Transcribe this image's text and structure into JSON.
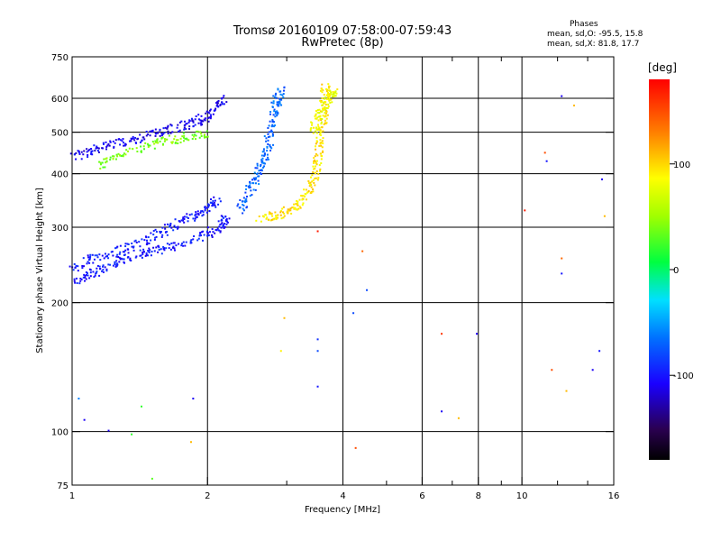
{
  "header": {
    "title": "Tromsø 20160109 07:58:00-07:59:43",
    "subtitle": "RwPretec (8p)"
  },
  "phases_box": {
    "heading": "Phases",
    "line_o": "mean, sd,O: -95.5, 15.8",
    "line_x": "mean, sd,X:  81.8, 17.7"
  },
  "colorbar": {
    "label": "[deg]",
    "ticks": [
      100,
      0,
      -100
    ],
    "tick_labels": [
      "100",
      "0",
      "-100"
    ],
    "range": [
      -180,
      180
    ]
  },
  "colors": {
    "frame": "#000000",
    "grid": "#000000",
    "background": "#ffffff"
  },
  "chart_data": {
    "type": "scatter",
    "title": "Tromsø 20160109 07:58:00-07:59:43",
    "subtitle": "RwPretec (8p)",
    "xlabel": "Frequency [MHz]",
    "ylabel": "Stationary phase Virtual Height [km]",
    "xscale": "log",
    "yscale": "log",
    "xlim": [
      1,
      16
    ],
    "ylim": [
      75,
      750
    ],
    "xticks": [
      1,
      2,
      4,
      6,
      8,
      10,
      16
    ],
    "xtick_labels": [
      "1",
      "2",
      "4",
      "6",
      "8",
      "10",
      "16"
    ],
    "yticks": [
      75,
      100,
      200,
      300,
      400,
      500,
      600,
      750
    ],
    "ytick_labels": [
      "75",
      "100",
      "200",
      "300",
      "400",
      "500",
      "600",
      "750"
    ],
    "x_gridlines": [
      2,
      4,
      6,
      8,
      10
    ],
    "y_gridlines": [
      100,
      200,
      300,
      400,
      500,
      600
    ],
    "color_dimension": "phase [deg]",
    "color_range": [
      -180,
      180
    ],
    "traces": [
      {
        "description": "O-mode lower F trace",
        "phase": -100,
        "points": [
          [
            1.0,
            225
          ],
          [
            1.1,
            235
          ],
          [
            1.2,
            245
          ],
          [
            1.3,
            255
          ],
          [
            1.45,
            262
          ],
          [
            1.6,
            268
          ],
          [
            1.8,
            280
          ],
          [
            2.0,
            292
          ],
          [
            2.15,
            305
          ],
          [
            2.2,
            320
          ]
        ]
      },
      {
        "description": "O-mode upper lower trace",
        "phase": -98,
        "points": [
          [
            1.0,
            240
          ],
          [
            1.1,
            255
          ],
          [
            1.25,
            265
          ],
          [
            1.4,
            275
          ],
          [
            1.55,
            292
          ],
          [
            1.7,
            305
          ],
          [
            1.85,
            320
          ],
          [
            2.0,
            335
          ],
          [
            2.1,
            350
          ]
        ]
      },
      {
        "description": "O-mode F2 cusp",
        "phase": -70,
        "points": [
          [
            2.35,
            330
          ],
          [
            2.45,
            360
          ],
          [
            2.55,
            390
          ],
          [
            2.62,
            420
          ],
          [
            2.7,
            460
          ],
          [
            2.75,
            500
          ],
          [
            2.8,
            550
          ],
          [
            2.85,
            600
          ],
          [
            2.9,
            640
          ]
        ]
      },
      {
        "description": "X-mode F2 trace",
        "phase": 95,
        "points": [
          [
            2.6,
            315
          ],
          [
            2.8,
            320
          ],
          [
            3.0,
            330
          ],
          [
            3.2,
            345
          ],
          [
            3.35,
            370
          ],
          [
            3.45,
            400
          ],
          [
            3.5,
            440
          ],
          [
            3.55,
            490
          ],
          [
            3.6,
            540
          ],
          [
            3.62,
            600
          ],
          [
            3.65,
            650
          ]
        ]
      },
      {
        "description": "X-mode upper spread",
        "phase": 80,
        "points": [
          [
            3.4,
            500
          ],
          [
            3.5,
            540
          ],
          [
            3.6,
            580
          ],
          [
            3.75,
            610
          ],
          [
            3.8,
            625
          ]
        ]
      },
      {
        "description": "O-mode high spread cluster",
        "phase": -110,
        "points": [
          [
            1.0,
            440
          ],
          [
            1.1,
            455
          ],
          [
            1.2,
            470
          ],
          [
            1.35,
            480
          ],
          [
            1.5,
            495
          ],
          [
            1.65,
            510
          ],
          [
            1.8,
            525
          ],
          [
            1.95,
            540
          ],
          [
            2.05,
            560
          ],
          [
            2.15,
            600
          ]
        ]
      },
      {
        "description": "Mixed-phase spread cluster",
        "phase": 40,
        "points": [
          [
            1.15,
            420
          ],
          [
            1.25,
            440
          ],
          [
            1.45,
            465
          ],
          [
            1.6,
            480
          ],
          [
            1.8,
            490
          ],
          [
            2.0,
            500
          ]
        ]
      }
    ],
    "scattered_points": [
      {
        "x": 1.03,
        "y": 120,
        "phase": -60
      },
      {
        "x": 1.06,
        "y": 107,
        "phase": -110
      },
      {
        "x": 1.2,
        "y": 101,
        "phase": -110
      },
      {
        "x": 1.35,
        "y": 99,
        "phase": 20
      },
      {
        "x": 1.5,
        "y": 78,
        "phase": 30
      },
      {
        "x": 1.42,
        "y": 115,
        "phase": 20
      },
      {
        "x": 1.85,
        "y": 120,
        "phase": -110
      },
      {
        "x": 1.83,
        "y": 95,
        "phase": 110
      },
      {
        "x": 2.9,
        "y": 155,
        "phase": 90
      },
      {
        "x": 2.95,
        "y": 185,
        "phase": 110
      },
      {
        "x": 3.5,
        "y": 165,
        "phase": -90
      },
      {
        "x": 3.5,
        "y": 155,
        "phase": -80
      },
      {
        "x": 3.5,
        "y": 128,
        "phase": -100
      },
      {
        "x": 3.5,
        "y": 295,
        "phase": 170
      },
      {
        "x": 4.2,
        "y": 190,
        "phase": -80
      },
      {
        "x": 4.25,
        "y": 92,
        "phase": 150
      },
      {
        "x": 4.4,
        "y": 265,
        "phase": 140
      },
      {
        "x": 4.5,
        "y": 215,
        "phase": -80
      },
      {
        "x": 6.6,
        "y": 170,
        "phase": 160
      },
      {
        "x": 6.6,
        "y": 112,
        "phase": -110
      },
      {
        "x": 7.2,
        "y": 108,
        "phase": 110
      },
      {
        "x": 7.9,
        "y": 170,
        "phase": -110
      },
      {
        "x": 10.1,
        "y": 330,
        "phase": 170
      },
      {
        "x": 11.2,
        "y": 450,
        "phase": 150
      },
      {
        "x": 11.3,
        "y": 430,
        "phase": -100
      },
      {
        "x": 12.2,
        "y": 610,
        "phase": -110
      },
      {
        "x": 12.5,
        "y": 125,
        "phase": 110
      },
      {
        "x": 13.0,
        "y": 580,
        "phase": 110
      },
      {
        "x": 14.3,
        "y": 140,
        "phase": -110
      },
      {
        "x": 15.0,
        "y": 390,
        "phase": -110
      },
      {
        "x": 15.2,
        "y": 320,
        "phase": 110
      },
      {
        "x": 12.2,
        "y": 255,
        "phase": 140
      },
      {
        "x": 12.2,
        "y": 235,
        "phase": -100
      },
      {
        "x": 11.6,
        "y": 140,
        "phase": 150
      },
      {
        "x": 14.8,
        "y": 155,
        "phase": -100
      }
    ]
  }
}
